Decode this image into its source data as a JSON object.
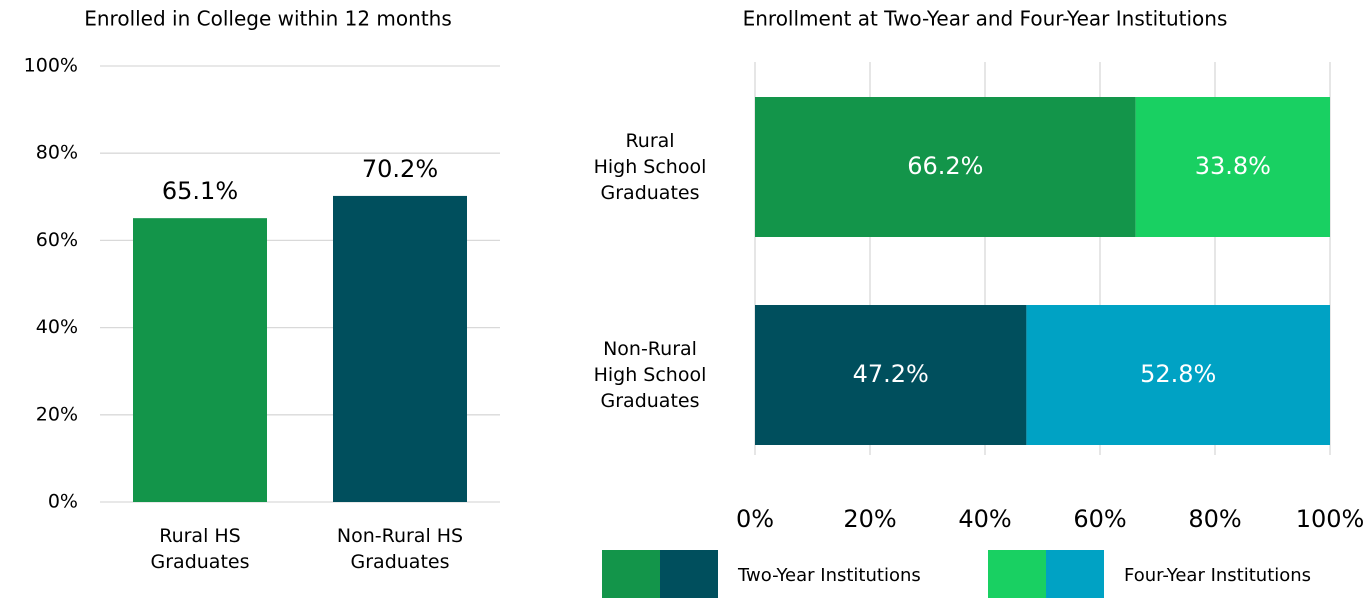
{
  "chart_data": [
    {
      "type": "bar",
      "title": "Enrolled in College within 12 months",
      "categories": [
        "Rural HS\nGraduates",
        "Non-Rural HS\nGraduates"
      ],
      "values": [
        65.1,
        70.2
      ],
      "value_labels": [
        "65.1%",
        "70.2%"
      ],
      "colors": [
        "#13954a",
        "#004f5d"
      ],
      "ylim": [
        0,
        100
      ],
      "yticks": [
        {
          "value": 0,
          "label": "0%"
        },
        {
          "value": 20,
          "label": "20%"
        },
        {
          "value": 40,
          "label": "40%"
        },
        {
          "value": 60,
          "label": "60%"
        },
        {
          "value": 80,
          "label": "80%"
        },
        {
          "value": 100,
          "label": "100%"
        }
      ],
      "grid": true
    },
    {
      "type": "hbar_stacked",
      "title": "Enrollment at Two-Year and Four-Year Institutions",
      "categories": [
        "Rural\nHigh School\nGraduates",
        "Non-Rural\nHigh School\nGraduates"
      ],
      "series": [
        {
          "name": "Two-Year Institutions",
          "colors": [
            "#13954a",
            "#004f5d"
          ],
          "values": [
            66.2,
            47.2
          ],
          "value_labels": [
            "66.2%",
            "47.2%"
          ]
        },
        {
          "name": "Four-Year Institutions",
          "colors": [
            "#19d062",
            "#00a2c4"
          ],
          "values": [
            33.8,
            52.8
          ],
          "value_labels": [
            "33.8%",
            "52.8%"
          ]
        }
      ],
      "xlim": [
        0,
        100
      ],
      "xticks": [
        {
          "value": 0,
          "label": "0%"
        },
        {
          "value": 20,
          "label": "20%"
        },
        {
          "value": 40,
          "label": "40%"
        },
        {
          "value": 60,
          "label": "60%"
        },
        {
          "value": 80,
          "label": "80%"
        },
        {
          "value": 100,
          "label": "100%"
        }
      ],
      "grid": true,
      "legend": "bottom"
    }
  ]
}
